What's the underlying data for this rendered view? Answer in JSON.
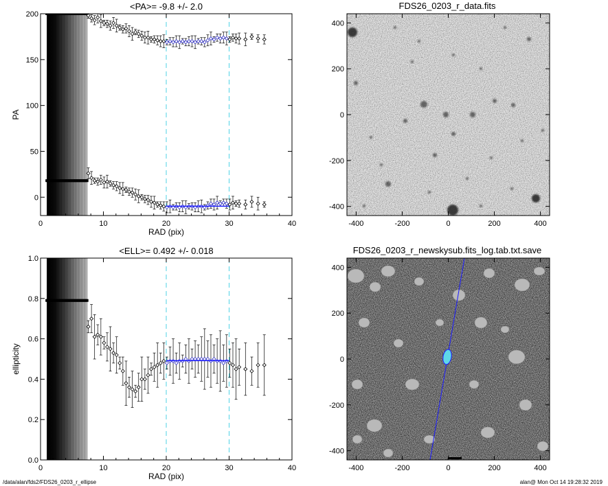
{
  "chart_data": [
    {
      "type": "scatter",
      "title": "<PA>=  -9.8 +/-   2.0",
      "xlabel": "RAD (pix)",
      "ylabel": "PA",
      "xlim": [
        0,
        40
      ],
      "ylim": [
        -20,
        200
      ],
      "xticks": [
        "0",
        "10",
        "20",
        "30",
        "40"
      ],
      "yticks": [
        "0",
        "50",
        "100",
        "150",
        "200"
      ],
      "vlines": [
        20,
        30
      ],
      "fit_range": [
        20,
        30
      ],
      "fit_value": -9.8,
      "mask_until": 7.5,
      "saturated_points": {
        "x_from": 1.0,
        "x_to": 7.5,
        "y_values": [
          200,
          18
        ]
      },
      "series": [
        {
          "values": [
            [
              7.6,
              198
            ],
            [
              8.1,
              195
            ],
            [
              8.6,
              193
            ],
            [
              9.1,
              196
            ],
            [
              9.6,
              192
            ],
            [
              10.1,
              190
            ],
            [
              10.6,
              189
            ],
            [
              11.1,
              187
            ],
            [
              11.6,
              190
            ],
            [
              12.1,
              187
            ],
            [
              12.6,
              185
            ],
            [
              13.1,
              183
            ],
            [
              13.6,
              184
            ],
            [
              14.1,
              181
            ],
            [
              14.6,
              178
            ],
            [
              15.1,
              180
            ],
            [
              15.6,
              178
            ],
            [
              16.1,
              176
            ],
            [
              16.6,
              174
            ],
            [
              17.1,
              174
            ],
            [
              17.6,
              172
            ],
            [
              18.1,
              172
            ],
            [
              18.6,
              171
            ],
            [
              19.1,
              170
            ],
            [
              19.6,
              170
            ],
            [
              20.1,
              169
            ],
            [
              20.6,
              170
            ],
            [
              21.1,
              169
            ],
            [
              21.6,
              170
            ],
            [
              22.1,
              169
            ],
            [
              22.6,
              170
            ],
            [
              23.1,
              169
            ],
            [
              23.6,
              170
            ],
            [
              24.1,
              170
            ],
            [
              24.6,
              169
            ],
            [
              25.1,
              170
            ],
            [
              25.6,
              170
            ],
            [
              26.1,
              169
            ],
            [
              26.6,
              171
            ],
            [
              27.1,
              173
            ],
            [
              27.6,
              172
            ],
            [
              28.1,
              174
            ],
            [
              28.6,
              173
            ],
            [
              29.1,
              174
            ],
            [
              29.6,
              173
            ],
            [
              30.1,
              172
            ],
            [
              30.6,
              174
            ],
            [
              31.1,
              173
            ],
            [
              31.6,
              173
            ],
            [
              32.6,
              172
            ],
            [
              33.6,
              175
            ],
            [
              34.6,
              173
            ],
            [
              35.6,
              172
            ],
            [
              7.6,
              26
            ],
            [
              8.1,
              21
            ],
            [
              8.6,
              18
            ],
            [
              9.1,
              17
            ],
            [
              9.6,
              19
            ],
            [
              10.1,
              16
            ],
            [
              10.6,
              17
            ],
            [
              11.1,
              15
            ],
            [
              11.6,
              13
            ],
            [
              12.1,
              12
            ],
            [
              12.6,
              10
            ],
            [
              13.1,
              9
            ],
            [
              13.6,
              8
            ],
            [
              14.1,
              6
            ],
            [
              14.6,
              5
            ],
            [
              15.1,
              3
            ],
            [
              15.6,
              1
            ],
            [
              16.1,
              0
            ],
            [
              16.6,
              -2
            ],
            [
              17.1,
              -3
            ],
            [
              17.6,
              -5
            ],
            [
              18.1,
              -6
            ],
            [
              18.6,
              -8
            ],
            [
              19.1,
              -9
            ],
            [
              19.6,
              -10
            ],
            [
              20.1,
              -11
            ],
            [
              20.6,
              -10
            ],
            [
              21.1,
              -11
            ],
            [
              21.6,
              -10
            ],
            [
              22.1,
              -11
            ],
            [
              22.6,
              -10
            ],
            [
              23.1,
              -11
            ],
            [
              23.6,
              -10
            ],
            [
              24.1,
              -10
            ],
            [
              24.6,
              -11
            ],
            [
              25.1,
              -10
            ],
            [
              25.6,
              -10
            ],
            [
              26.1,
              -11
            ],
            [
              26.6,
              -9
            ],
            [
              27.1,
              -7
            ],
            [
              27.6,
              -8
            ],
            [
              28.1,
              -6
            ],
            [
              28.6,
              -7
            ],
            [
              29.1,
              -6
            ],
            [
              29.6,
              -7
            ],
            [
              30.1,
              -8
            ],
            [
              30.6,
              -6
            ],
            [
              31.1,
              -7
            ],
            [
              31.6,
              -7
            ],
            [
              32.6,
              -8
            ],
            [
              33.6,
              -5
            ],
            [
              34.6,
              -7
            ],
            [
              35.6,
              -8
            ]
          ]
        }
      ]
    },
    {
      "type": "scatter",
      "title": "<ELL>= 0.492 +/-  0.018",
      "xlabel": "RAD (pix)",
      "ylabel": "ellipticity",
      "xlim": [
        0,
        40
      ],
      "ylim": [
        0,
        1
      ],
      "xticks": [
        "0",
        "10",
        "20",
        "30",
        "40"
      ],
      "yticks": [
        "0.0",
        "0.2",
        "0.4",
        "0.6",
        "0.8",
        "1.0"
      ],
      "vlines": [
        20,
        30
      ],
      "fit_range": [
        20,
        30
      ],
      "fit_value": 0.492,
      "mask_until": 7.5,
      "saturated_points": {
        "x_from": 1.0,
        "x_to": 7.5,
        "y_values": [
          0.79
        ]
      },
      "series": [
        {
          "values": [
            [
              7.6,
              0.66
            ],
            [
              8.1,
              0.7
            ],
            [
              8.6,
              0.61
            ],
            [
              9.1,
              0.62
            ],
            [
              9.6,
              0.61
            ],
            [
              10.1,
              0.58
            ],
            [
              10.6,
              0.56
            ],
            [
              11.1,
              0.55
            ],
            [
              11.6,
              0.53
            ],
            [
              12.1,
              0.52
            ],
            [
              12.6,
              0.48
            ],
            [
              13.1,
              0.44
            ],
            [
              13.6,
              0.38
            ],
            [
              14.1,
              0.36
            ],
            [
              14.6,
              0.35
            ],
            [
              15.1,
              0.34
            ],
            [
              15.6,
              0.36
            ],
            [
              16.1,
              0.4
            ],
            [
              16.6,
              0.4
            ],
            [
              17.1,
              0.42
            ],
            [
              17.6,
              0.45
            ],
            [
              18.1,
              0.46
            ],
            [
              18.6,
              0.47
            ],
            [
              19.1,
              0.48
            ],
            [
              19.6,
              0.49
            ],
            [
              20.1,
              0.48
            ],
            [
              20.6,
              0.49
            ],
            [
              21.1,
              0.49
            ],
            [
              21.6,
              0.48
            ],
            [
              22.1,
              0.49
            ],
            [
              22.6,
              0.49
            ],
            [
              23.1,
              0.5
            ],
            [
              23.6,
              0.49
            ],
            [
              24.1,
              0.5
            ],
            [
              24.6,
              0.5
            ],
            [
              25.1,
              0.5
            ],
            [
              25.6,
              0.5
            ],
            [
              26.1,
              0.5
            ],
            [
              26.6,
              0.5
            ],
            [
              27.1,
              0.49
            ],
            [
              27.6,
              0.5
            ],
            [
              28.1,
              0.49
            ],
            [
              28.6,
              0.49
            ],
            [
              29.1,
              0.48
            ],
            [
              29.6,
              0.49
            ],
            [
              30.1,
              0.48
            ],
            [
              30.6,
              0.47
            ],
            [
              31.1,
              0.45
            ],
            [
              31.6,
              0.46
            ],
            [
              32.6,
              0.45
            ],
            [
              33.6,
              0.44
            ],
            [
              34.6,
              0.47
            ],
            [
              35.6,
              0.47
            ]
          ]
        }
      ]
    }
  ],
  "images": [
    {
      "title": "FDS26_0203_r_data.fits",
      "xlim": [
        -440,
        440
      ],
      "ylim": [
        -440,
        440
      ],
      "xticks": [
        "-400",
        "-200",
        "0",
        "200",
        "400"
      ],
      "yticks": [
        "-400",
        "-200",
        "0",
        "200",
        "400"
      ]
    },
    {
      "title": "FDS26_0203_r_newskysub.fits_log.tab.txt.save",
      "xlim": [
        -440,
        440
      ],
      "ylim": [
        -440,
        440
      ],
      "xticks": [
        "-400",
        "-200",
        "0",
        "200",
        "400"
      ],
      "yticks": [
        "-400",
        "-200",
        "0",
        "200",
        "400"
      ]
    }
  ],
  "footer": {
    "path": "/data/alan/fds2/FDS26_0203_r_ellipse",
    "user_date": "alan@  Mon Oct 14 19:28:32 2019"
  },
  "colors": {
    "fit_line": "#1a1aff",
    "guide_lines": "#4dd2e6",
    "ellipse": "#57d8e8",
    "mask_dark": "#000000",
    "mask_light": "#b8b8b8"
  }
}
